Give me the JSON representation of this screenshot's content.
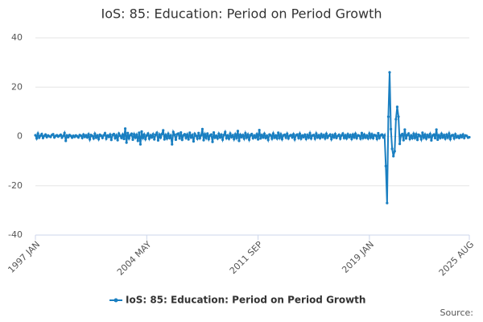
{
  "chart_data": {
    "type": "line",
    "title": "IoS: 85: Education: Period on Period Growth",
    "source": "Source:",
    "ylim": [
      -40,
      40
    ],
    "yticks": [
      -40,
      -20,
      0,
      20,
      40
    ],
    "grid": true,
    "categories": [
      "1997 JAN",
      null,
      null,
      null,
      null,
      null,
      null,
      null,
      null,
      null,
      null,
      null,
      null,
      null,
      null,
      null,
      null,
      null,
      null,
      null,
      null,
      null,
      null,
      null,
      null,
      null,
      null,
      null,
      null,
      null,
      null,
      null,
      null,
      null,
      null,
      null,
      null,
      null,
      null,
      null,
      null,
      null,
      null,
      null,
      null,
      null,
      null,
      null,
      null,
      null,
      null,
      null,
      null,
      null,
      null,
      null,
      null,
      null,
      null,
      null,
      null,
      null,
      null,
      null,
      null,
      null,
      null,
      null,
      null,
      null,
      null,
      null,
      null,
      null,
      null,
      null,
      null,
      null,
      null,
      null,
      null,
      null,
      null,
      null,
      null,
      null,
      null,
      null,
      "2004 MAY",
      null,
      null,
      null,
      null,
      null,
      null,
      null,
      null,
      null,
      null,
      null,
      null,
      null,
      null,
      null,
      null,
      null,
      null,
      null,
      null,
      null,
      null,
      null,
      null,
      null,
      null,
      null,
      null,
      null,
      null,
      null,
      null,
      null,
      null,
      null,
      null,
      null,
      null,
      null,
      null,
      null,
      null,
      null,
      null,
      null,
      null,
      null,
      null,
      null,
      null,
      null,
      null,
      null,
      null,
      null,
      null,
      null,
      null,
      null,
      null,
      null,
      null,
      null,
      null,
      null,
      null,
      null,
      null,
      null,
      null,
      null,
      null,
      null,
      null,
      null,
      null,
      null,
      null,
      null,
      null,
      null,
      null,
      null,
      null,
      null,
      null,
      null,
      "2011 SEP",
      null,
      null,
      null,
      null,
      null,
      null,
      null,
      null,
      null,
      null,
      null,
      null,
      null,
      null,
      null,
      null,
      null,
      null,
      null,
      null,
      null,
      null,
      null,
      null,
      null,
      null,
      null,
      null,
      null,
      null,
      null,
      null,
      null,
      null,
      null,
      null,
      null,
      null,
      null,
      null,
      null,
      null,
      null,
      null,
      null,
      null,
      null,
      null,
      null,
      null,
      null,
      null,
      null,
      null,
      null,
      null,
      null,
      null,
      null,
      null,
      null,
      null,
      null,
      null,
      null,
      null,
      null,
      null,
      null,
      null,
      null,
      null,
      null,
      null,
      null,
      null,
      null,
      null,
      null,
      null,
      null,
      null,
      null,
      null,
      null,
      null,
      null,
      "2019 JAN",
      null,
      null,
      null,
      null,
      null,
      null,
      null,
      null,
      null,
      null,
      null,
      null,
      null,
      null,
      null,
      null,
      null,
      null,
      null,
      null,
      null,
      null,
      null,
      null,
      null,
      null,
      null,
      null,
      null,
      null,
      null,
      null,
      null,
      null,
      null,
      null,
      null,
      null,
      null,
      null,
      null,
      null,
      null,
      null,
      null,
      null,
      null,
      null,
      null,
      null,
      null,
      null,
      null,
      null,
      null,
      null,
      null,
      null,
      null,
      null,
      null,
      null,
      null,
      null,
      null,
      null,
      null,
      null,
      null,
      null,
      null,
      null,
      null,
      null,
      null,
      null,
      null,
      null,
      "2025 AUG"
    ],
    "series": [
      {
        "name": "IoS: 85: Education: Period on Period Growth",
        "color": "#1a7fc1",
        "values": [
          0.5,
          -0.8,
          1.2,
          -0.5,
          0.3,
          1,
          -0.6,
          0.2,
          0.8,
          -0.3,
          0.4,
          0.1,
          -0.2,
          0.6,
          0.9,
          -0.4,
          0.2,
          0.5,
          -0.1,
          0.3,
          0.7,
          -0.5,
          0.2,
          1.4,
          -1.8,
          0.4,
          -0.3,
          0.6,
          0.2,
          -0.5,
          0.3,
          -0.2,
          0.4,
          0.1,
          -0.4,
          0.6,
          0.3,
          -0.6,
          0.8,
          -0.2,
          0.5,
          -0.4,
          0.9,
          -1.2,
          0.6,
          0.2,
          -0.8,
          1.1,
          -0.5,
          0.4,
          -1.1,
          0.7,
          0.3,
          -0.6,
          0.5,
          1.3,
          -0.9,
          0.4,
          -0.2,
          0.8,
          -1.4,
          0.6,
          1,
          -0.7,
          0.5,
          -1.5,
          1.2,
          0.3,
          -0.6,
          0.8,
          -1,
          3.2,
          -2.5,
          1.4,
          -0.8,
          0.6,
          1.1,
          -1.3,
          0.9,
          -0.5,
          0.7,
          -1.8,
          1.5,
          -3.2,
          2,
          -0.6,
          0.8,
          -1.1,
          0.4,
          1.2,
          -0.9,
          0.5,
          -0.4,
          0.9,
          -1.2,
          0.7,
          1.5,
          -1.6,
          0.8,
          -0.5,
          1,
          2.5,
          -1.2,
          0.6,
          -0.8,
          1.1,
          -0.6,
          0.4,
          -3.2,
          1.8,
          0.7,
          -1.3,
          0.9,
          1.2,
          -0.8,
          1.6,
          -1.4,
          0.5,
          0.9,
          -0.6,
          0.8,
          -1.2,
          1.5,
          -0.4,
          0.6,
          -2,
          1.1,
          0.3,
          -0.9,
          1.4,
          -0.7,
          0.5,
          3,
          -1.5,
          0.9,
          -0.6,
          1.2,
          -1.1,
          0.4,
          0.8,
          -2.2,
          1.6,
          -0.5,
          0.3,
          -0.8,
          1.1,
          -0.4,
          0.7,
          -1.3,
          0.6,
          1.8,
          -0.7,
          0.4,
          -0.9,
          1.2,
          -0.3,
          0.5,
          -1.1,
          0.9,
          -0.6,
          2.2,
          -1.8,
          0.7,
          -0.3,
          0.6,
          -0.9,
          1.3,
          -0.5,
          0.8,
          -1.3,
          0.5,
          1,
          -0.7,
          0.4,
          -0.5,
          0.9,
          -1.2,
          2.6,
          -0.8,
          0.6,
          -0.4,
          1.1,
          -0.6,
          0.3,
          -1.4,
          0.8,
          0.5,
          -0.9,
          1.2,
          -0.5,
          0.4,
          -0.8,
          1.5,
          -0.6,
          0.9,
          -1.1,
          0.4,
          0.7,
          -0.5,
          1.1,
          -0.8,
          0.3,
          0.6,
          -0.4,
          0.9,
          -1.2,
          0.5,
          0.8,
          -0.6,
          1.1,
          -0.9,
          0.4,
          -0.3,
          0.7,
          -1,
          0.6,
          -0.5,
          1.3,
          -0.8,
          0.4,
          0.6,
          -0.9,
          1.2,
          -0.4,
          0.5,
          -0.7,
          0.9,
          -0.3,
          0.6,
          -0.8,
          1.1,
          -0.5,
          0.3,
          0.8,
          -1.1,
          0.6,
          -0.4,
          1,
          -0.6,
          0.2,
          0.7,
          -0.9,
          0.4,
          1.2,
          -0.6,
          0.5,
          -0.8,
          0.9,
          -0.3,
          0.6,
          -1,
          0.8,
          -0.4,
          1.1,
          -0.7,
          0.5,
          0.3,
          -0.9,
          1.4,
          -0.6,
          0.8,
          -0.5,
          0.4,
          -0.8,
          1.2,
          -0.5,
          0.9,
          -0.7,
          0.6,
          0.4,
          -1,
          1.3,
          -0.6,
          0.5,
          0.8,
          -0.4,
          0.5,
          -12,
          -27,
          8,
          26,
          3,
          -5,
          -8,
          -6,
          7,
          12,
          8,
          -3,
          0.5,
          1,
          -1.5,
          2.8,
          -0.8,
          0.6,
          1.2,
          -1,
          0.4,
          -0.7,
          1.1,
          -0.6,
          0.9,
          -1.4,
          0.7,
          0.3,
          -1.2,
          1.5,
          -0.5,
          0.8,
          -0.9,
          0.6,
          -0.3,
          1,
          -1.6,
          0.4,
          0.8,
          -0.7,
          2.8,
          -1.3,
          0.5,
          -0.6,
          1.1,
          -0.4,
          0.6,
          -0.9,
          0.7,
          -0.5,
          1.2,
          -1.1,
          0.4,
          0.6,
          -0.8,
          0.9,
          -0.4,
          0.2,
          -0.6,
          0.5,
          -0.3,
          0.8,
          -0.6,
          0.4,
          0.2,
          -0.5,
          -0.3
        ]
      }
    ]
  }
}
